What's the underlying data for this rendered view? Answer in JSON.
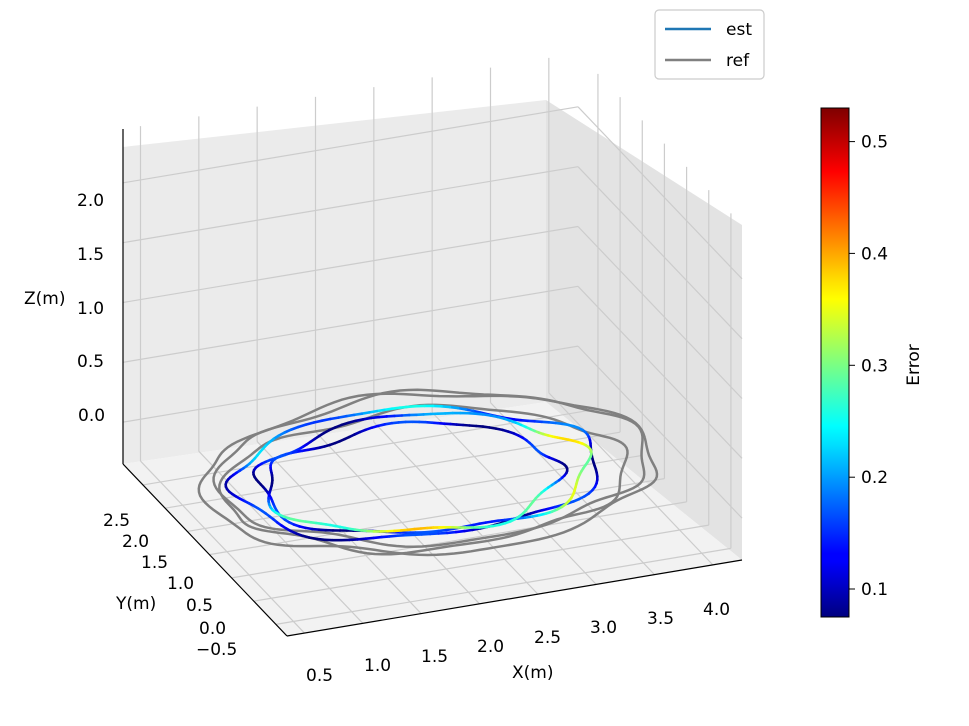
{
  "chart_data": {
    "type": "line",
    "title": "",
    "xlabel": "X(m)",
    "ylabel": "Y(m)",
    "zlabel": "Z(m)",
    "xlim": [
      0.35,
      4.25
    ],
    "ylim": [
      -0.75,
      2.95
    ],
    "zlim": [
      -0.35,
      2.45
    ],
    "x_ticks": [
      "0.5",
      "1.0",
      "1.5",
      "2.0",
      "2.5",
      "3.0",
      "3.5",
      "4.0"
    ],
    "y_ticks": [
      "−0.5",
      "0.0",
      "0.5",
      "1.0",
      "1.5",
      "2.0",
      "2.5"
    ],
    "z_ticks": [
      "0.0",
      "0.5",
      "1.0",
      "1.5",
      "2.0"
    ],
    "grid": true,
    "legend": {
      "placement": "top-right",
      "entries": [
        {
          "label": "est",
          "color": "#1f77b4"
        },
        {
          "label": "ref",
          "color": "#808080"
        }
      ]
    },
    "colorbar": {
      "label": "Error",
      "colormap": "jet",
      "range": [
        0.075,
        0.53
      ],
      "ticks": [
        "0.1",
        "0.2",
        "0.3",
        "0.4",
        "0.5"
      ]
    },
    "series": [
      {
        "name": "ref",
        "color": "#808080",
        "loops": [
          {
            "cx": 2.25,
            "cy": 1.05,
            "rx": 1.85,
            "ry": 1.55,
            "z": 0.0
          },
          {
            "cx": 2.3,
            "cy": 1.1,
            "rx": 1.75,
            "ry": 1.45,
            "z": 0.02
          },
          {
            "cx": 2.2,
            "cy": 1.0,
            "rx": 1.65,
            "ry": 1.35,
            "z": -0.02
          }
        ]
      },
      {
        "name": "est",
        "colored_by": "error",
        "loops": [
          {
            "cx": 2.15,
            "cy": 1.1,
            "rx": 1.5,
            "ry": 1.25,
            "z": 0.0
          },
          {
            "cx": 2.2,
            "cy": 1.05,
            "rx": 1.35,
            "ry": 1.15,
            "z": 0.0
          },
          {
            "cx": 2.1,
            "cy": 1.0,
            "rx": 1.2,
            "ry": 1.05,
            "z": 0.0
          }
        ]
      }
    ]
  }
}
